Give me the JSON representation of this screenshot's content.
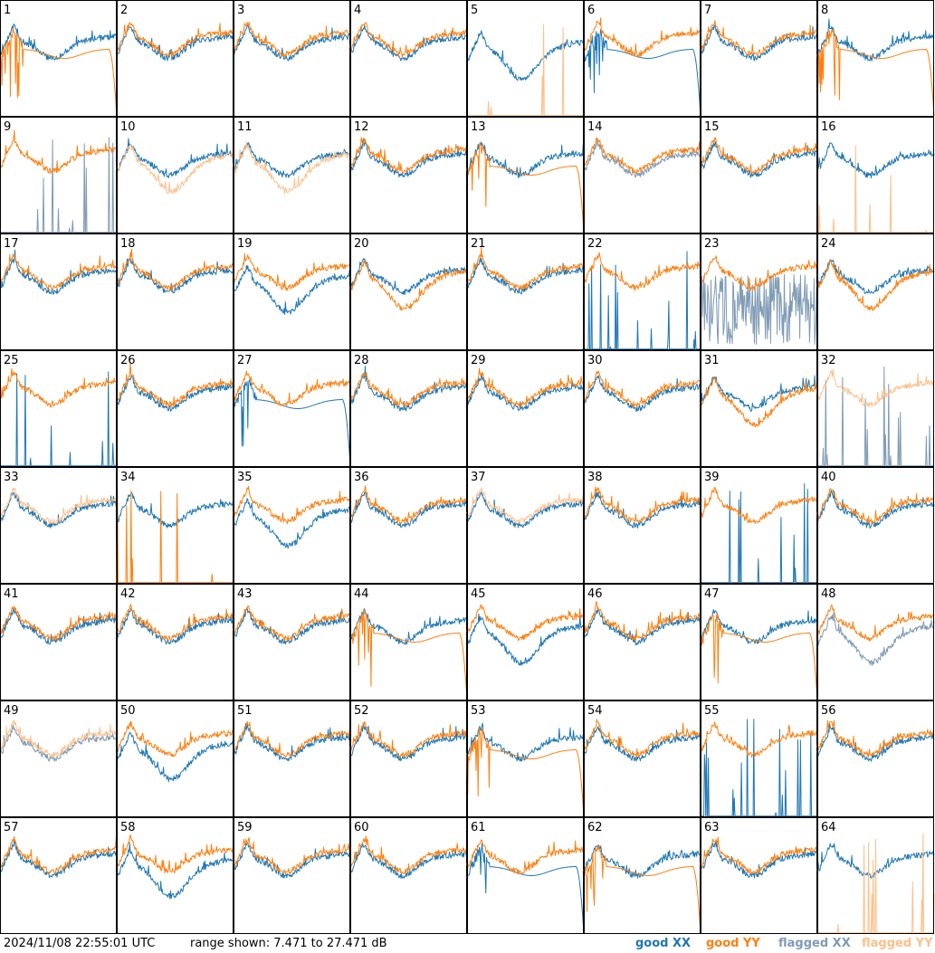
{
  "timestamp": "2024/11/08 22:55:01 UTC",
  "range_text": "range shown: 7.471 to 27.471 dB",
  "legend": [
    {
      "label": "good XX",
      "color": "#1f77b4"
    },
    {
      "label": "good YY",
      "color": "#ff7f0e"
    },
    {
      "label": "flagged XX",
      "color": "#7f9bb5"
    },
    {
      "label": "flagged YY",
      "color": "#ffbf8a"
    }
  ],
  "chart_data": {
    "type": "line",
    "title": "",
    "ylim": [
      7.471,
      27.471
    ],
    "grid": false,
    "legend_position": "bottom-right",
    "panels": [
      {
        "label": "1",
        "xx": "good",
        "yy": "good",
        "xx_profile": "normal",
        "yy_profile": "dropout"
      },
      {
        "label": "2",
        "xx": "good",
        "yy": "good",
        "xx_profile": "normal",
        "yy_profile": "normal"
      },
      {
        "label": "3",
        "xx": "good",
        "yy": "good",
        "xx_profile": "normal",
        "yy_profile": "normal"
      },
      {
        "label": "4",
        "xx": "good",
        "yy": "good",
        "xx_profile": "normal",
        "yy_profile": "normal"
      },
      {
        "label": "5",
        "xx": "good",
        "yy": "flagged",
        "xx_profile": "low",
        "yy_profile": "spikes"
      },
      {
        "label": "6",
        "xx": "good",
        "yy": "good",
        "xx_profile": "dropout",
        "yy_profile": "normal"
      },
      {
        "label": "7",
        "xx": "good",
        "yy": "good",
        "xx_profile": "normal",
        "yy_profile": "normal"
      },
      {
        "label": "8",
        "xx": "good",
        "yy": "good",
        "xx_profile": "normal",
        "yy_profile": "dropout"
      },
      {
        "label": "9",
        "xx": "flagged",
        "yy": "good",
        "xx_profile": "spikes",
        "yy_profile": "normal"
      },
      {
        "label": "10",
        "xx": "good",
        "yy": "flagged",
        "xx_profile": "normal",
        "yy_profile": "low"
      },
      {
        "label": "11",
        "xx": "good",
        "yy": "flagged",
        "xx_profile": "normal",
        "yy_profile": "low"
      },
      {
        "label": "12",
        "xx": "good",
        "yy": "good",
        "xx_profile": "normal",
        "yy_profile": "normal"
      },
      {
        "label": "13",
        "xx": "good",
        "yy": "good",
        "xx_profile": "normal",
        "yy_profile": "dropout"
      },
      {
        "label": "14",
        "xx": "flagged",
        "yy": "good",
        "xx_profile": "normal",
        "yy_profile": "normal"
      },
      {
        "label": "15",
        "xx": "good",
        "yy": "good",
        "xx_profile": "normal",
        "yy_profile": "normal"
      },
      {
        "label": "16",
        "xx": "good",
        "yy": "flagged",
        "xx_profile": "normal",
        "yy_profile": "spikes"
      },
      {
        "label": "17",
        "xx": "good",
        "yy": "good",
        "xx_profile": "normal",
        "yy_profile": "normal"
      },
      {
        "label": "18",
        "xx": "good",
        "yy": "good",
        "xx_profile": "normal",
        "yy_profile": "normal"
      },
      {
        "label": "19",
        "xx": "good",
        "yy": "good",
        "xx_profile": "low",
        "yy_profile": "normal"
      },
      {
        "label": "20",
        "xx": "good",
        "yy": "good",
        "xx_profile": "normal",
        "yy_profile": "low"
      },
      {
        "label": "21",
        "xx": "good",
        "yy": "good",
        "xx_profile": "normal",
        "yy_profile": "normal"
      },
      {
        "label": "22",
        "xx": "good",
        "yy": "good",
        "xx_profile": "spikes",
        "yy_profile": "normal"
      },
      {
        "label": "23",
        "xx": "flagged",
        "yy": "good",
        "xx_profile": "noise",
        "yy_profile": "normal"
      },
      {
        "label": "24",
        "xx": "good",
        "yy": "good",
        "xx_profile": "normal",
        "yy_profile": "low"
      },
      {
        "label": "25",
        "xx": "good",
        "yy": "good",
        "xx_profile": "spikes",
        "yy_profile": "normal"
      },
      {
        "label": "26",
        "xx": "good",
        "yy": "good",
        "xx_profile": "normal",
        "yy_profile": "normal"
      },
      {
        "label": "27",
        "xx": "good",
        "yy": "good",
        "xx_profile": "dropout",
        "yy_profile": "normal"
      },
      {
        "label": "28",
        "xx": "good",
        "yy": "good",
        "xx_profile": "normal",
        "yy_profile": "normal"
      },
      {
        "label": "29",
        "xx": "good",
        "yy": "good",
        "xx_profile": "normal",
        "yy_profile": "normal"
      },
      {
        "label": "30",
        "xx": "good",
        "yy": "good",
        "xx_profile": "normal",
        "yy_profile": "normal"
      },
      {
        "label": "31",
        "xx": "good",
        "yy": "good",
        "xx_profile": "normal",
        "yy_profile": "low"
      },
      {
        "label": "32",
        "xx": "flagged",
        "yy": "flagged",
        "xx_profile": "spikes",
        "yy_profile": "normal"
      },
      {
        "label": "33",
        "xx": "good",
        "yy": "flagged",
        "xx_profile": "normal",
        "yy_profile": "normal"
      },
      {
        "label": "34",
        "xx": "good",
        "yy": "good",
        "xx_profile": "normal",
        "yy_profile": "spikes"
      },
      {
        "label": "35",
        "xx": "good",
        "yy": "good",
        "xx_profile": "low",
        "yy_profile": "normal"
      },
      {
        "label": "36",
        "xx": "good",
        "yy": "good",
        "xx_profile": "normal",
        "yy_profile": "normal"
      },
      {
        "label": "37",
        "xx": "good",
        "yy": "flagged",
        "xx_profile": "normal",
        "yy_profile": "normal"
      },
      {
        "label": "38",
        "xx": "good",
        "yy": "good",
        "xx_profile": "normal",
        "yy_profile": "normal"
      },
      {
        "label": "39",
        "xx": "good",
        "yy": "good",
        "xx_profile": "spikes",
        "yy_profile": "normal"
      },
      {
        "label": "40",
        "xx": "good",
        "yy": "good",
        "xx_profile": "normal",
        "yy_profile": "normal"
      },
      {
        "label": "41",
        "xx": "good",
        "yy": "good",
        "xx_profile": "normal",
        "yy_profile": "normal"
      },
      {
        "label": "42",
        "xx": "good",
        "yy": "good",
        "xx_profile": "normal",
        "yy_profile": "normal"
      },
      {
        "label": "43",
        "xx": "good",
        "yy": "good",
        "xx_profile": "normal",
        "yy_profile": "normal"
      },
      {
        "label": "44",
        "xx": "good",
        "yy": "good",
        "xx_profile": "normal",
        "yy_profile": "dropout"
      },
      {
        "label": "45",
        "xx": "good",
        "yy": "good",
        "xx_profile": "low",
        "yy_profile": "normal"
      },
      {
        "label": "46",
        "xx": "good",
        "yy": "good",
        "xx_profile": "normal",
        "yy_profile": "normal"
      },
      {
        "label": "47",
        "xx": "good",
        "yy": "good",
        "xx_profile": "normal",
        "yy_profile": "dropout"
      },
      {
        "label": "48",
        "xx": "flagged",
        "yy": "good",
        "xx_profile": "low",
        "yy_profile": "normal"
      },
      {
        "label": "49",
        "xx": "flagged",
        "yy": "flagged",
        "xx_profile": "normal",
        "yy_profile": "normal"
      },
      {
        "label": "50",
        "xx": "good",
        "yy": "good",
        "xx_profile": "low",
        "yy_profile": "normal"
      },
      {
        "label": "51",
        "xx": "good",
        "yy": "good",
        "xx_profile": "normal",
        "yy_profile": "normal"
      },
      {
        "label": "52",
        "xx": "good",
        "yy": "good",
        "xx_profile": "normal",
        "yy_profile": "normal"
      },
      {
        "label": "53",
        "xx": "good",
        "yy": "good",
        "xx_profile": "normal",
        "yy_profile": "dropout"
      },
      {
        "label": "54",
        "xx": "good",
        "yy": "good",
        "xx_profile": "normal",
        "yy_profile": "normal"
      },
      {
        "label": "55",
        "xx": "good",
        "yy": "good",
        "xx_profile": "spikes",
        "yy_profile": "normal"
      },
      {
        "label": "56",
        "xx": "good",
        "yy": "good",
        "xx_profile": "normal",
        "yy_profile": "normal"
      },
      {
        "label": "57",
        "xx": "good",
        "yy": "good",
        "xx_profile": "normal",
        "yy_profile": "normal"
      },
      {
        "label": "58",
        "xx": "good",
        "yy": "good",
        "xx_profile": "low",
        "yy_profile": "normal"
      },
      {
        "label": "59",
        "xx": "good",
        "yy": "good",
        "xx_profile": "normal",
        "yy_profile": "normal"
      },
      {
        "label": "60",
        "xx": "good",
        "yy": "good",
        "xx_profile": "normal",
        "yy_profile": "normal"
      },
      {
        "label": "61",
        "xx": "good",
        "yy": "good",
        "xx_profile": "dropout",
        "yy_profile": "normal"
      },
      {
        "label": "62",
        "xx": "good",
        "yy": "good",
        "xx_profile": "normal",
        "yy_profile": "dropout"
      },
      {
        "label": "63",
        "xx": "good",
        "yy": "good",
        "xx_profile": "normal",
        "yy_profile": "normal"
      },
      {
        "label": "64",
        "xx": "good",
        "yy": "flagged",
        "xx_profile": "normal",
        "yy_profile": "spikes"
      }
    ]
  }
}
